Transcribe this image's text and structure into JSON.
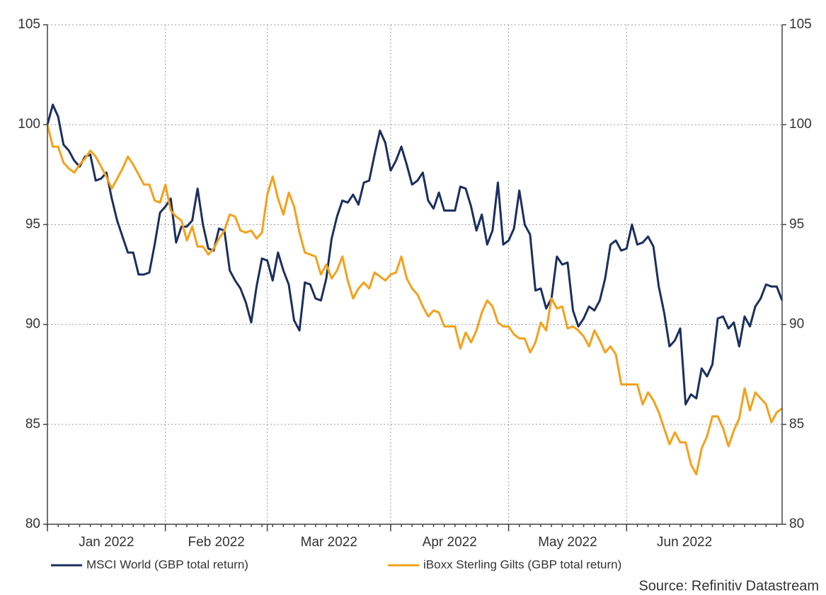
{
  "chart_data": {
    "type": "line",
    "source": "Source: Refinitiv Datastream",
    "categories": [
      "Jan 2022",
      null,
      null,
      null,
      null,
      null,
      null,
      null,
      null,
      null,
      null,
      null,
      null,
      null,
      null,
      null,
      null,
      null,
      null,
      null,
      null,
      null,
      "Feb 2022",
      null,
      null,
      null,
      null,
      null,
      null,
      null,
      null,
      null,
      null,
      null,
      null,
      null,
      null,
      null,
      null,
      null,
      null,
      "Mar 2022",
      null,
      null,
      null,
      null,
      null,
      null,
      null,
      null,
      null,
      null,
      null,
      null,
      null,
      null,
      null,
      null,
      null,
      null,
      null,
      null,
      null,
      null,
      "Apr 2022",
      null,
      null,
      null,
      null,
      null,
      null,
      null,
      null,
      null,
      null,
      null,
      null,
      null,
      null,
      null,
      null,
      null,
      null,
      null,
      null,
      null,
      "May 2022",
      null,
      null,
      null,
      null,
      null,
      null,
      null,
      null,
      null,
      null,
      null,
      null,
      null,
      null,
      null,
      null,
      null,
      null,
      null,
      null,
      null,
      "Jun 2022",
      null,
      null,
      null,
      null,
      null,
      null,
      null,
      null,
      null,
      null,
      null,
      null,
      null,
      null,
      null,
      null,
      null,
      null,
      null,
      null,
      null,
      null,
      null,
      null,
      null,
      null,
      null,
      null,
      null
    ],
    "series": [
      {
        "name": "MSCI World (GBP total return)",
        "color": "#1b2f5e",
        "values": [
          100,
          101,
          100.4,
          99,
          98.7,
          98.2,
          97.9,
          98.4,
          98.5,
          97.2,
          97.3,
          97.6,
          96.3,
          95.2,
          94.4,
          93.6,
          93.6,
          92.5,
          92.5,
          92.6,
          94,
          95.6,
          95.9,
          96.3,
          94.1,
          94.9,
          94.9,
          95.2,
          96.8,
          95,
          93.8,
          93.7,
          94.8,
          94.7,
          92.7,
          92.2,
          91.8,
          91.1,
          90.1,
          91.9,
          93.3,
          93.2,
          92.2,
          93.6,
          92.7,
          92,
          90.2,
          89.7,
          92.1,
          92,
          91.3,
          91.2,
          92.3,
          94.3,
          95.4,
          96.2,
          96.1,
          96.5,
          96,
          97.1,
          97.2,
          98.5,
          99.7,
          99.1,
          97.7,
          98.2,
          98.9,
          98,
          97,
          97.2,
          97.6,
          96.2,
          95.8,
          96.6,
          95.7,
          95.7,
          95.7,
          96.9,
          96.8,
          95.9,
          94.7,
          95.5,
          94,
          94.7,
          97.1,
          94,
          94.2,
          94.8,
          96.7,
          95,
          94.5,
          91.7,
          91.8,
          90.8,
          91.3,
          93.4,
          93,
          93.1,
          90.7,
          89.9,
          90.3,
          90.9,
          90.7,
          91.2,
          92.3,
          94,
          94.2,
          93.7,
          93.8,
          95,
          94,
          94.1,
          94.4,
          93.9,
          91.9,
          90.6,
          88.9,
          89.2,
          89.8,
          86,
          86.5,
          86.3,
          87.8,
          87.4,
          88,
          90.3,
          90.4,
          89.8,
          90.1,
          88.9,
          90.4,
          89.9,
          90.9,
          91.3,
          92,
          91.9,
          91.9,
          91.2
        ]
      },
      {
        "name": "iBoxx Sterling Gilts (GBP total return)",
        "color": "#f5a01a",
        "values": [
          100,
          98.9,
          98.9,
          98.1,
          97.8,
          97.6,
          98,
          98.3,
          98.7,
          98.4,
          97.9,
          97.4,
          96.8,
          97.3,
          97.8,
          98.4,
          98,
          97.5,
          97,
          97,
          96.2,
          96.1,
          97,
          95.7,
          95.4,
          95.2,
          94.2,
          94.9,
          93.9,
          93.9,
          93.5,
          93.8,
          94.3,
          94.7,
          95.5,
          95.4,
          94.7,
          94.6,
          94.7,
          94.3,
          94.6,
          96.5,
          97.4,
          96.3,
          95.5,
          96.6,
          95.9,
          94.6,
          93.6,
          93.5,
          93.4,
          92.5,
          93,
          92.3,
          92.7,
          93.4,
          92.2,
          91.3,
          91.8,
          92.1,
          91.8,
          92.6,
          92.4,
          92.2,
          92.5,
          92.6,
          93.4,
          92.3,
          91.8,
          91.5,
          90.9,
          90.4,
          90.7,
          90.6,
          89.9,
          89.9,
          89.9,
          88.8,
          89.6,
          89.1,
          89.7,
          90.6,
          91.2,
          90.9,
          90.1,
          89.9,
          89.9,
          89.5,
          89.3,
          89.3,
          88.6,
          89.1,
          90.1,
          89.7,
          91.3,
          90.8,
          90.9,
          89.8,
          89.9,
          89.7,
          89.4,
          88.9,
          89.7,
          89.2,
          88.6,
          88.9,
          88.5,
          87,
          87,
          87,
          87,
          86,
          86.6,
          86.2,
          85.6,
          84.8,
          84,
          84.6,
          84.1,
          84.1,
          83,
          82.5,
          83.8,
          84.4,
          85.4,
          85.4,
          84.8,
          83.9,
          84.7,
          85.3,
          86.8,
          85.7,
          86.6,
          86.3,
          86,
          85.1,
          85.6,
          85.8
        ]
      }
    ],
    "ylim": [
      80,
      105
    ],
    "yticks": [
      80,
      85,
      90,
      95,
      100,
      105
    ],
    "y2lim": [
      80,
      105
    ],
    "y2ticks": [
      80,
      85,
      90,
      95,
      100,
      105
    ],
    "grid": true,
    "legend": "bottom"
  }
}
